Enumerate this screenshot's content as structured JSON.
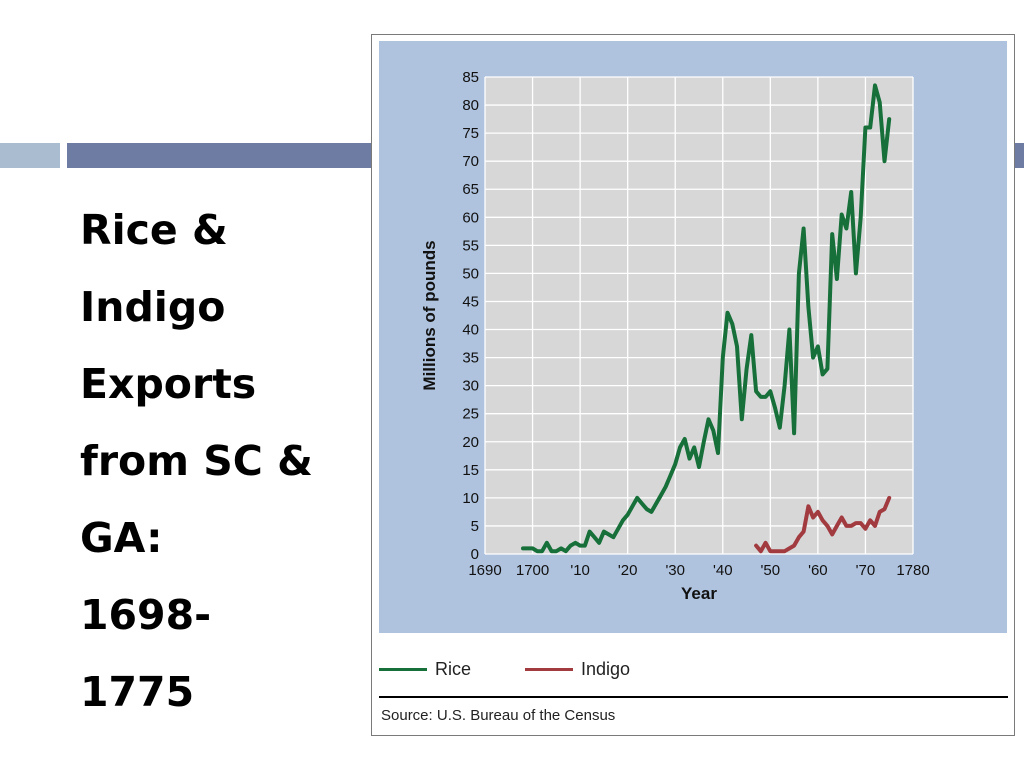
{
  "slide": {
    "title_lines": [
      "Rice &",
      "Indigo",
      "Exports",
      "from SC &",
      "GA:",
      "1698-",
      "1775"
    ]
  },
  "colors": {
    "rice": "#17703a",
    "indigo": "#a23b40",
    "plot_bg": "#d7d7d7",
    "panel_bg": "#afc3de",
    "bar_light": "#a9bcd0",
    "bar_dark": "#6e7ba3"
  },
  "chart_data": {
    "type": "line",
    "title": "",
    "xlabel": "Year",
    "ylabel": "Millions of pounds",
    "xlim": [
      1690,
      1780
    ],
    "ylim": [
      0,
      85
    ],
    "grid": true,
    "x_ticks": [
      {
        "value": 1690,
        "label": "1690"
      },
      {
        "value": 1700,
        "label": "1700"
      },
      {
        "value": 1710,
        "label": "'10"
      },
      {
        "value": 1720,
        "label": "'20"
      },
      {
        "value": 1730,
        "label": "'30"
      },
      {
        "value": 1740,
        "label": "'40"
      },
      {
        "value": 1750,
        "label": "'50"
      },
      {
        "value": 1760,
        "label": "'60"
      },
      {
        "value": 1770,
        "label": "'70"
      },
      {
        "value": 1780,
        "label": "1780"
      }
    ],
    "y_ticks": [
      0,
      5,
      10,
      15,
      20,
      25,
      30,
      35,
      40,
      45,
      50,
      55,
      60,
      65,
      70,
      75,
      80,
      85
    ],
    "legend_position": "bottom",
    "series": [
      {
        "name": "Rice",
        "color": "#17703a",
        "x": [
          1698,
          1700,
          1701,
          1702,
          1703,
          1704,
          1705,
          1706,
          1707,
          1708,
          1709,
          1710,
          1711,
          1712,
          1713,
          1714,
          1715,
          1716,
          1717,
          1718,
          1719,
          1720,
          1721,
          1722,
          1723,
          1724,
          1725,
          1726,
          1727,
          1728,
          1729,
          1730,
          1731,
          1732,
          1733,
          1734,
          1735,
          1736,
          1737,
          1738,
          1739,
          1740,
          1741,
          1742,
          1743,
          1744,
          1745,
          1746,
          1747,
          1748,
          1749,
          1750,
          1751,
          1752,
          1753,
          1754,
          1755,
          1756,
          1757,
          1758,
          1759,
          1760,
          1761,
          1762,
          1763,
          1764,
          1765,
          1766,
          1767,
          1768,
          1769,
          1770,
          1771,
          1772,
          1773,
          1774,
          1775
        ],
        "y": [
          1,
          1,
          0.5,
          0.5,
          2,
          0.5,
          0.5,
          1,
          0.5,
          1.5,
          2,
          1.5,
          1.5,
          4,
          3,
          2,
          4,
          3.5,
          3,
          4.5,
          6,
          7,
          8.5,
          10,
          9,
          8,
          7.5,
          9,
          10.5,
          12,
          14,
          16,
          19,
          20.5,
          17,
          19,
          15.5,
          20,
          24,
          22,
          18,
          35,
          43,
          41,
          37,
          24,
          33,
          39,
          29,
          28,
          28,
          29,
          26,
          22.5,
          30,
          40,
          21.5,
          50,
          58,
          44,
          35,
          37,
          32,
          33,
          57,
          49,
          60.5,
          58,
          64.5,
          50,
          60,
          76,
          76,
          83.5,
          80.5,
          70,
          77.5
        ]
      },
      {
        "name": "Indigo",
        "color": "#a23b40",
        "x": [
          1747,
          1748,
          1749,
          1750,
          1751,
          1752,
          1753,
          1754,
          1755,
          1756,
          1757,
          1758,
          1759,
          1760,
          1761,
          1762,
          1763,
          1764,
          1765,
          1766,
          1767,
          1768,
          1769,
          1770,
          1771,
          1772,
          1773,
          1774,
          1775
        ],
        "y": [
          1.5,
          0.5,
          2,
          0.5,
          0.5,
          0.5,
          0.5,
          1,
          1.5,
          3,
          4,
          8.5,
          6.5,
          7.5,
          6,
          5,
          3.5,
          5,
          6.5,
          5,
          5,
          5.5,
          5.5,
          4.5,
          6,
          5,
          7.5,
          8,
          10
        ]
      }
    ]
  },
  "legend": {
    "rice_label": "Rice",
    "indigo_label": "Indigo"
  },
  "source": "Source: U.S. Bureau of the Census"
}
